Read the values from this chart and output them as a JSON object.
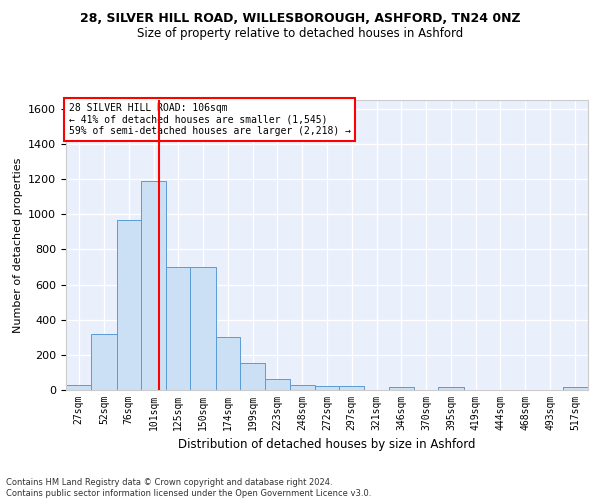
{
  "title_line1": "28, SILVER HILL ROAD, WILLESBOROUGH, ASHFORD, TN24 0NZ",
  "title_line2": "Size of property relative to detached houses in Ashford",
  "xlabel": "Distribution of detached houses by size in Ashford",
  "ylabel": "Number of detached properties",
  "footnote": "Contains HM Land Registry data © Crown copyright and database right 2024.\nContains public sector information licensed under the Open Government Licence v3.0.",
  "annotation_title": "28 SILVER HILL ROAD: 106sqm",
  "annotation_line2": "← 41% of detached houses are smaller (1,545)",
  "annotation_line3": "59% of semi-detached houses are larger (2,218) →",
  "property_size": 106,
  "bar_color": "#cce0f5",
  "bar_edge_color": "#5b9bd5",
  "vline_color": "red",
  "background_color": "#eaf0fb",
  "grid_color": "white",
  "categories": [
    "27sqm",
    "52sqm",
    "76sqm",
    "101sqm",
    "125sqm",
    "150sqm",
    "174sqm",
    "199sqm",
    "223sqm",
    "248sqm",
    "272sqm",
    "297sqm",
    "321sqm",
    "346sqm",
    "370sqm",
    "395sqm",
    "419sqm",
    "444sqm",
    "468sqm",
    "493sqm",
    "517sqm"
  ],
  "bin_edges": [
    14.5,
    39.5,
    64.5,
    88.5,
    113.5,
    137.5,
    162.5,
    186.5,
    211.5,
    235.5,
    260.5,
    284.5,
    309.5,
    333.5,
    358.5,
    382.5,
    407.5,
    431.5,
    456.5,
    480.5,
    505.5,
    530.5
  ],
  "values": [
    30,
    320,
    970,
    1190,
    700,
    700,
    300,
    155,
    65,
    30,
    20,
    20,
    0,
    15,
    0,
    15,
    0,
    0,
    0,
    0,
    15
  ],
  "ylim": [
    0,
    1650
  ],
  "yticks": [
    0,
    200,
    400,
    600,
    800,
    1000,
    1200,
    1400,
    1600
  ]
}
